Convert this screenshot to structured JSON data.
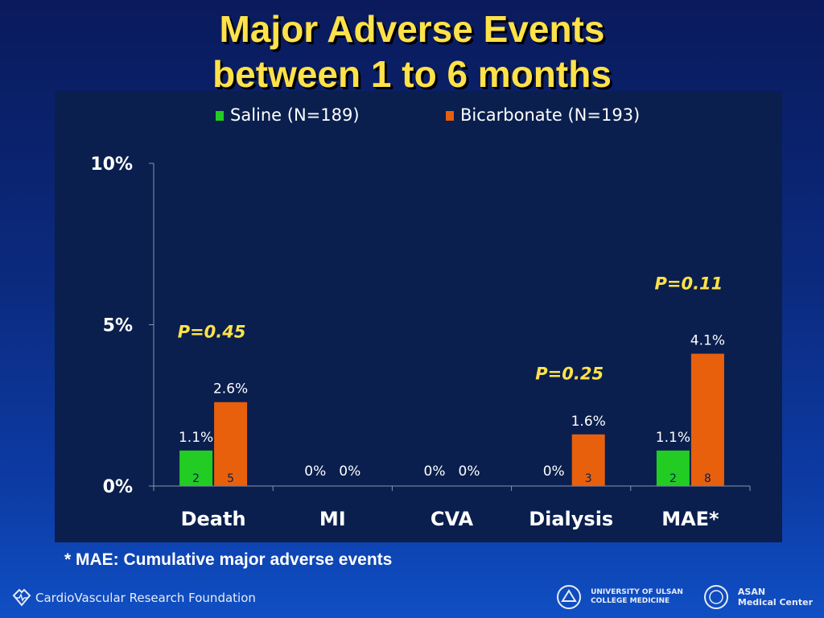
{
  "slide": {
    "title_line1": "Major Adverse Events",
    "title_line2": "between 1 to 6 months",
    "footnote": "* MAE: Cumulative major adverse events",
    "footer_left": "CardioVascular Research Foundation",
    "footer_right_uni": [
      "UNIVERSITY OF ULSAN",
      "COLLEGE MEDICINE"
    ],
    "footer_right_asan": [
      "ASAN",
      "Medical Center"
    ]
  },
  "chart_data": {
    "type": "bar",
    "categories": [
      "Death",
      "MI",
      "CVA",
      "Dialysis",
      "MAE*"
    ],
    "ylim": [
      0,
      10
    ],
    "yticks": [
      {
        "value": 0,
        "label": "0%"
      },
      {
        "value": 5,
        "label": "5%"
      },
      {
        "value": 10,
        "label": "10%"
      }
    ],
    "legend_position": "top",
    "series": [
      {
        "name": "Saline (N=189)",
        "color": "#22cc22",
        "values": [
          1.1,
          0,
          0,
          0,
          1.1
        ],
        "labels": [
          "1.1%",
          "0%",
          "0%",
          "0%",
          "1.1%"
        ],
        "counts": [
          "2",
          "",
          "",
          "",
          "2"
        ]
      },
      {
        "name": "Bicarbonate (N=193)",
        "color": "#e8600c",
        "values": [
          2.6,
          0,
          0,
          1.6,
          4.1
        ],
        "labels": [
          "2.6%",
          "0%",
          "0%",
          "1.6%",
          "4.1%"
        ],
        "counts": [
          "5",
          "",
          "",
          "3",
          "8"
        ]
      }
    ],
    "annotations": [
      {
        "category": "Death",
        "text": "P=0.45",
        "y": 4.6
      },
      {
        "category": "Dialysis",
        "text": "P=0.25",
        "y": 3.3
      },
      {
        "category": "MAE*",
        "text": "P=0.11",
        "y": 6.1
      }
    ],
    "grid": false
  }
}
